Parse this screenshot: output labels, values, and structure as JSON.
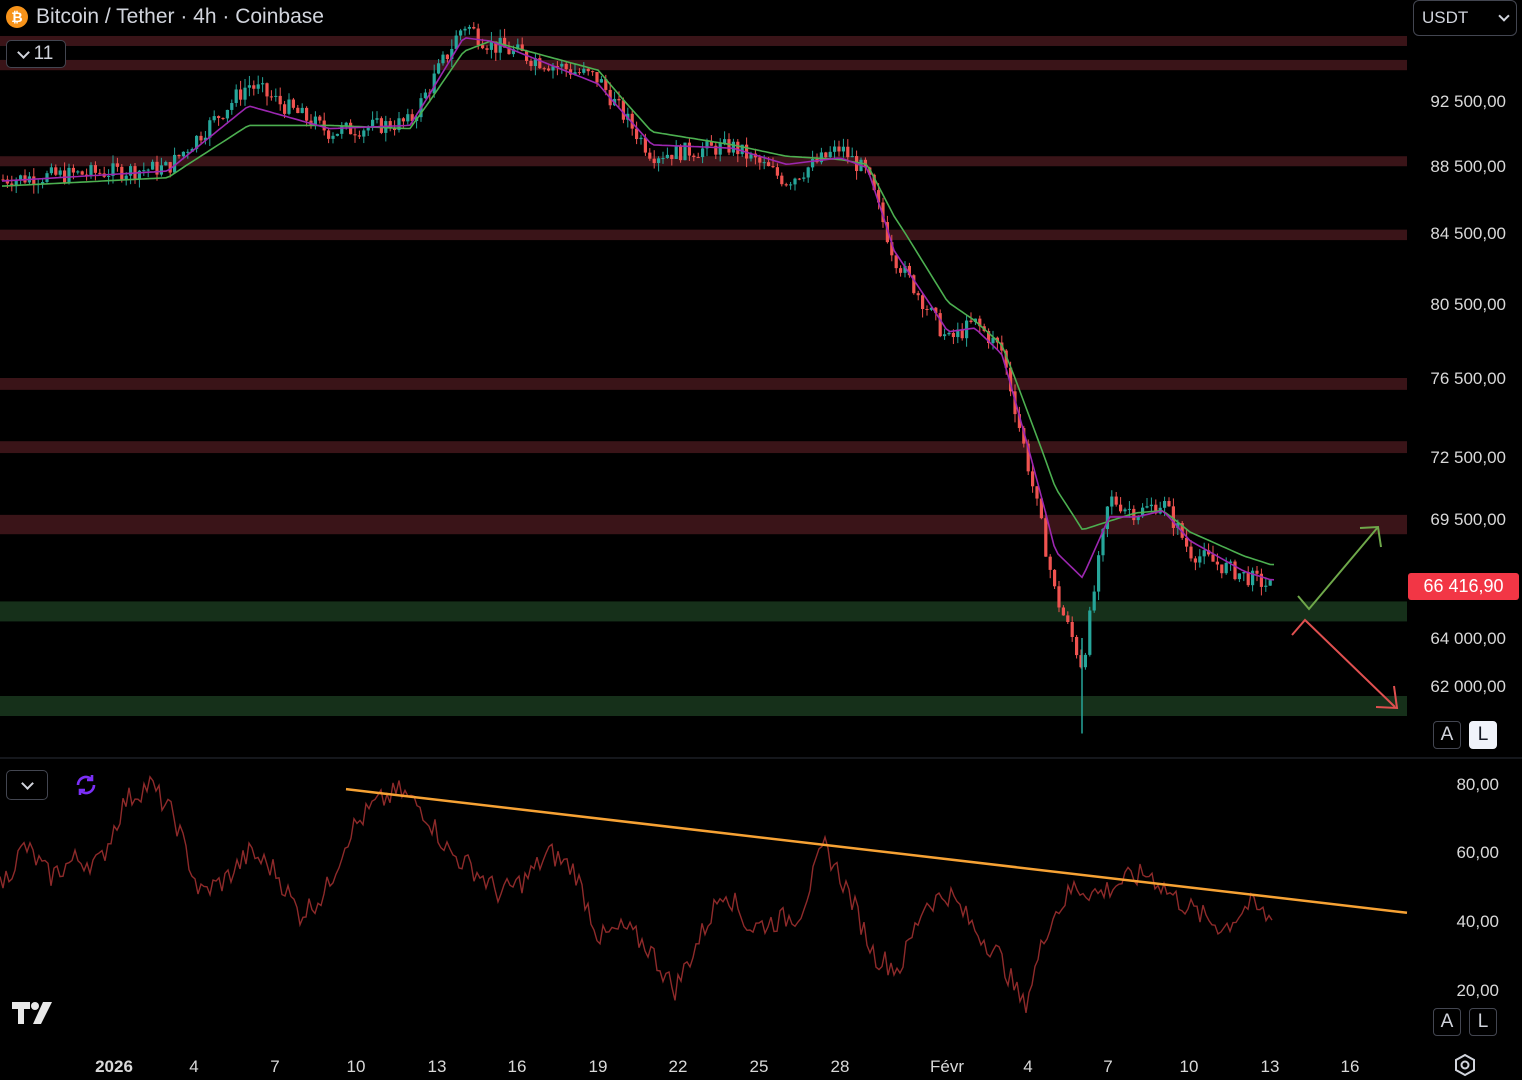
{
  "header": {
    "title": "Bitcoin / Tether · 4h · Coinbase",
    "coin_icon": "bitcoin-icon",
    "coin_glyph": "₿"
  },
  "indicators_button": {
    "count": "11"
  },
  "currency_select": {
    "value": "USDT"
  },
  "scale_buttons": {
    "auto": "A",
    "log": "L"
  },
  "colors": {
    "resistance_zone": "#3a1418",
    "support_zone": "#16301a",
    "up_candle": "#26a69a",
    "down_candle": "#ef5350",
    "ema_fast": "#9c27b0",
    "ema_slow": "#4caf50",
    "rsi": "#8e2a2a",
    "trendline": "#f7a234",
    "arrow_up": "#6fa84a",
    "arrow_down": "#e05050",
    "price_tag": "#f23645"
  },
  "chart_data": [
    {
      "type": "candlestick",
      "title": "Bitcoin / Tether · 4h · Coinbase",
      "x_axis_labels": [
        "2026",
        "4",
        "7",
        "10",
        "13",
        "16",
        "19",
        "22",
        "25",
        "28",
        "Févr",
        "4",
        "7",
        "10",
        "13",
        "16"
      ],
      "y_axis_labels": [
        "92 500,00",
        "88 500,00",
        "84 500,00",
        "80 500,00",
        "76 500,00",
        "72 500,00",
        "69 500,00",
        "64 000,00",
        "62 000,00"
      ],
      "last_price": "66 416,90",
      "series_key_points": {
        "x": [
          "Jan 1",
          "Jan 3",
          "Jan 6",
          "Jan 9",
          "Jan 12",
          "Jan 14",
          "Jan 15",
          "Jan 19",
          "Jan 21",
          "Jan 24",
          "Jan 26",
          "Jan 28",
          "Jan 29",
          "Jan 30",
          "Feb 1",
          "Feb 2",
          "Feb 3",
          "Feb 5",
          "Feb 6",
          "Feb 7",
          "Feb 8",
          "Feb 9",
          "Feb 10",
          "Feb 12",
          "Feb 13"
        ],
        "close": [
          87700,
          88400,
          93500,
          90600,
          91200,
          97000,
          95800,
          93800,
          89200,
          89700,
          87600,
          89600,
          88000,
          83200,
          78500,
          79500,
          78000,
          66000,
          62800,
          70500,
          69800,
          70300,
          68000,
          66900,
          66400
        ]
      },
      "ema_fast_points": [
        87600,
        88200,
        92200,
        90800,
        91000,
        96200,
        96000,
        93500,
        89800,
        89600,
        88600,
        89000,
        88400,
        83500,
        79000,
        79200,
        77800,
        68000,
        66800,
        69600,
        69600,
        69900,
        68500,
        67100,
        66700
      ],
      "ema_slow_points": [
        87300,
        87800,
        91000,
        91000,
        90800,
        95400,
        96000,
        94300,
        90600,
        89800,
        89100,
        88900,
        88600,
        85500,
        80600,
        79600,
        78300,
        71000,
        69000,
        69400,
        69800,
        69900,
        68900,
        67800,
        67400
      ],
      "resistance_zones": [
        [
          95800,
          96300
        ],
        [
          94300,
          94900
        ],
        [
          88500,
          89100
        ],
        [
          84100,
          84700
        ],
        [
          75900,
          76500
        ],
        [
          72700,
          73300
        ],
        [
          68800,
          69700
        ]
      ],
      "support_zones": [
        [
          64900,
          65700
        ],
        [
          60900,
          61600
        ]
      ],
      "scenario_arrows": [
        "up",
        "down"
      ]
    },
    {
      "type": "line",
      "title": "",
      "y_axis_labels": [
        "80,00",
        "60,00",
        "40,00",
        "20,00"
      ],
      "ylim": [
        13,
        90
      ],
      "rsi_points": [
        50,
        62,
        53,
        58,
        57,
        75,
        80,
        70,
        48,
        52,
        60,
        55,
        42,
        48,
        66,
        74,
        78,
        72,
        60,
        55,
        48,
        52,
        60,
        55,
        35,
        38,
        32,
        20,
        35,
        50,
        38,
        40,
        42,
        62,
        48,
        30,
        26,
        45,
        48,
        38,
        30,
        15,
        40,
        50,
        48,
        52,
        54,
        47,
        42,
        38,
        45,
        40
      ],
      "trendline": {
        "start": 78.5,
        "end": 42.5
      }
    }
  ]
}
